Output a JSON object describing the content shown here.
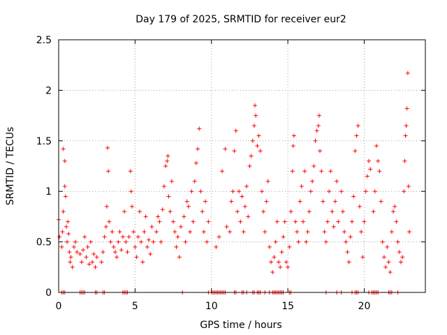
{
  "chart_data": {
    "type": "scatter",
    "title": "Day 179 of 2025, SRMTID for receiver eur2",
    "xlabel": "GPS time / hours",
    "ylabel": "SRMTID / TECUs",
    "xlim": [
      0,
      24
    ],
    "ylim": [
      0,
      2.5
    ],
    "xticks": [
      0,
      5,
      10,
      15,
      20
    ],
    "xtick_labels": [
      "0",
      "5",
      "10",
      "15",
      "20"
    ],
    "yticks": [
      0,
      0.5,
      1,
      1.5,
      2,
      2.5
    ],
    "ytick_labels": [
      "0",
      "0.5",
      "1",
      "1.5",
      "2",
      "2.5"
    ],
    "grid": true,
    "marker": "+",
    "color": "#ff0000",
    "points": [
      [
        0.0,
        0.72
      ],
      [
        0.05,
        0.55
      ],
      [
        0.2,
        0.45
      ],
      [
        0.25,
        0.6
      ],
      [
        0.3,
        0.8
      ],
      [
        0.3,
        1.42
      ],
      [
        0.4,
        1.3
      ],
      [
        0.4,
        1.05
      ],
      [
        0.45,
        0.95
      ],
      [
        0.5,
        0.65
      ],
      [
        0.55,
        0.5
      ],
      [
        0.6,
        0.7
      ],
      [
        0.65,
        0.58
      ],
      [
        0.7,
        0.4
      ],
      [
        0.75,
        0.3
      ],
      [
        0.8,
        0.35
      ],
      [
        0.9,
        0.25
      ],
      [
        1.0,
        0.45
      ],
      [
        1.1,
        0.5
      ],
      [
        1.2,
        0.4
      ],
      [
        1.4,
        0.38
      ],
      [
        1.5,
        0.3
      ],
      [
        1.6,
        0.42
      ],
      [
        1.7,
        0.55
      ],
      [
        1.8,
        0.35
      ],
      [
        1.9,
        0.45
      ],
      [
        2.0,
        0.28
      ],
      [
        2.1,
        0.5
      ],
      [
        2.2,
        0.3
      ],
      [
        2.3,
        0.38
      ],
      [
        2.4,
        0.25
      ],
      [
        2.5,
        0.35
      ],
      [
        2.8,
        0.3
      ],
      [
        2.9,
        0.4
      ],
      [
        3.0,
        0.55
      ],
      [
        3.1,
        0.65
      ],
      [
        3.15,
        0.85
      ],
      [
        3.2,
        1.43
      ],
      [
        3.25,
        1.2
      ],
      [
        3.3,
        0.7
      ],
      [
        3.4,
        0.5
      ],
      [
        3.5,
        0.6
      ],
      [
        3.6,
        0.45
      ],
      [
        3.7,
        0.4
      ],
      [
        3.8,
        0.35
      ],
      [
        3.9,
        0.5
      ],
      [
        4.0,
        0.6
      ],
      [
        4.1,
        0.42
      ],
      [
        4.2,
        0.55
      ],
      [
        4.3,
        0.8
      ],
      [
        4.4,
        0.5
      ],
      [
        4.5,
        0.4
      ],
      [
        4.6,
        0.55
      ],
      [
        4.7,
        1.2
      ],
      [
        4.75,
        1.0
      ],
      [
        4.8,
        0.85
      ],
      [
        4.9,
        0.6
      ],
      [
        5.0,
        0.45
      ],
      [
        5.1,
        0.35
      ],
      [
        5.2,
        0.55
      ],
      [
        5.3,
        0.8
      ],
      [
        5.4,
        0.5
      ],
      [
        5.5,
        0.3
      ],
      [
        5.6,
        0.6
      ],
      [
        5.7,
        0.75
      ],
      [
        5.8,
        0.45
      ],
      [
        5.9,
        0.52
      ],
      [
        6.0,
        0.38
      ],
      [
        6.1,
        0.65
      ],
      [
        6.2,
        0.5
      ],
      [
        6.4,
        0.6
      ],
      [
        6.5,
        0.75
      ],
      [
        6.6,
        0.7
      ],
      [
        6.7,
        0.5
      ],
      [
        6.8,
        0.82
      ],
      [
        6.9,
        1.05
      ],
      [
        7.0,
        1.25
      ],
      [
        7.1,
        1.3
      ],
      [
        7.15,
        1.35
      ],
      [
        7.2,
        0.95
      ],
      [
        7.3,
        0.8
      ],
      [
        7.4,
        1.1
      ],
      [
        7.5,
        0.7
      ],
      [
        7.6,
        0.6
      ],
      [
        7.7,
        0.45
      ],
      [
        7.8,
        0.55
      ],
      [
        7.9,
        0.35
      ],
      [
        8.0,
        0.65
      ],
      [
        8.2,
        0.75
      ],
      [
        8.3,
        0.5
      ],
      [
        8.4,
        0.9
      ],
      [
        8.5,
        0.85
      ],
      [
        8.6,
        0.6
      ],
      [
        8.7,
        1.0
      ],
      [
        8.8,
        0.7
      ],
      [
        8.9,
        1.1
      ],
      [
        9.0,
        1.28
      ],
      [
        9.1,
        1.42
      ],
      [
        9.2,
        1.62
      ],
      [
        9.3,
        1.0
      ],
      [
        9.4,
        0.8
      ],
      [
        9.5,
        0.6
      ],
      [
        9.6,
        0.9
      ],
      [
        9.7,
        0.5
      ],
      [
        9.8,
        0.7
      ],
      [
        10.3,
        0.45
      ],
      [
        10.5,
        0.55
      ],
      [
        10.7,
        1.2
      ],
      [
        10.9,
        1.42
      ],
      [
        11.0,
        0.65
      ],
      [
        11.2,
        0.6
      ],
      [
        11.3,
        0.9
      ],
      [
        11.4,
        1.0
      ],
      [
        11.5,
        1.4
      ],
      [
        11.6,
        1.6
      ],
      [
        11.7,
        0.8
      ],
      [
        11.8,
        1.0
      ],
      [
        11.9,
        0.7
      ],
      [
        12.0,
        0.95
      ],
      [
        12.1,
        0.6
      ],
      [
        12.2,
        0.85
      ],
      [
        12.3,
        1.05
      ],
      [
        12.4,
        0.75
      ],
      [
        12.5,
        1.25
      ],
      [
        12.6,
        1.35
      ],
      [
        12.7,
        1.5
      ],
      [
        12.8,
        1.65
      ],
      [
        12.85,
        1.85
      ],
      [
        12.9,
        1.75
      ],
      [
        13.0,
        1.45
      ],
      [
        13.1,
        1.55
      ],
      [
        13.2,
        1.4
      ],
      [
        13.3,
        1.0
      ],
      [
        13.4,
        0.8
      ],
      [
        13.5,
        0.6
      ],
      [
        13.6,
        0.9
      ],
      [
        13.7,
        1.1
      ],
      [
        13.8,
        0.45
      ],
      [
        13.9,
        0.3
      ],
      [
        14.0,
        0.2
      ],
      [
        14.1,
        0.35
      ],
      [
        14.2,
        0.5
      ],
      [
        14.3,
        0.7
      ],
      [
        14.4,
        0.3
      ],
      [
        14.5,
        0.25
      ],
      [
        14.6,
        0.4
      ],
      [
        14.7,
        0.55
      ],
      [
        14.8,
        0.7
      ],
      [
        14.9,
        0.3
      ],
      [
        15.0,
        0.25
      ],
      [
        15.1,
        0.45
      ],
      [
        15.2,
        0.8
      ],
      [
        15.3,
        1.2
      ],
      [
        15.35,
        1.45
      ],
      [
        15.4,
        1.55
      ],
      [
        15.5,
        0.7
      ],
      [
        15.6,
        0.6
      ],
      [
        15.7,
        0.5
      ],
      [
        15.8,
        0.9
      ],
      [
        15.9,
        1.05
      ],
      [
        16.0,
        0.7
      ],
      [
        16.1,
        1.2
      ],
      [
        16.2,
        0.5
      ],
      [
        16.3,
        0.6
      ],
      [
        16.4,
        0.8
      ],
      [
        16.5,
        1.0
      ],
      [
        16.6,
        1.1
      ],
      [
        16.7,
        1.25
      ],
      [
        16.8,
        1.5
      ],
      [
        16.9,
        1.6
      ],
      [
        17.0,
        1.65
      ],
      [
        17.05,
        1.75
      ],
      [
        17.1,
        1.4
      ],
      [
        17.2,
        1.2
      ],
      [
        17.3,
        0.9
      ],
      [
        17.4,
        0.6
      ],
      [
        17.5,
        0.5
      ],
      [
        17.6,
        0.7
      ],
      [
        17.7,
        1.0
      ],
      [
        17.8,
        1.2
      ],
      [
        17.9,
        0.8
      ],
      [
        18.0,
        0.65
      ],
      [
        18.1,
        0.9
      ],
      [
        18.2,
        1.1
      ],
      [
        18.3,
        0.7
      ],
      [
        18.5,
        1.0
      ],
      [
        18.6,
        0.8
      ],
      [
        18.7,
        0.6
      ],
      [
        18.8,
        0.5
      ],
      [
        18.9,
        0.4
      ],
      [
        19.0,
        0.3
      ],
      [
        19.1,
        0.55
      ],
      [
        19.2,
        0.7
      ],
      [
        19.3,
        0.95
      ],
      [
        19.4,
        1.4
      ],
      [
        19.5,
        1.55
      ],
      [
        19.6,
        1.65
      ],
      [
        19.7,
        0.85
      ],
      [
        19.8,
        0.6
      ],
      [
        19.9,
        0.35
      ],
      [
        20.0,
        0.7
      ],
      [
        20.1,
        1.0
      ],
      [
        20.2,
        1.15
      ],
      [
        20.3,
        1.3
      ],
      [
        20.4,
        1.22
      ],
      [
        20.6,
        0.8
      ],
      [
        20.7,
        1.0
      ],
      [
        20.8,
        1.45
      ],
      [
        20.9,
        1.3
      ],
      [
        21.0,
        1.2
      ],
      [
        21.1,
        0.9
      ],
      [
        21.2,
        0.5
      ],
      [
        21.3,
        0.35
      ],
      [
        21.4,
        0.25
      ],
      [
        21.5,
        0.45
      ],
      [
        21.6,
        0.3
      ],
      [
        21.7,
        0.2
      ],
      [
        21.8,
        0.6
      ],
      [
        21.9,
        0.8
      ],
      [
        22.0,
        0.85
      ],
      [
        22.1,
        0.7
      ],
      [
        22.2,
        0.5
      ],
      [
        22.3,
        0.4
      ],
      [
        22.4,
        0.3
      ],
      [
        22.5,
        0.35
      ],
      [
        22.6,
        1.0
      ],
      [
        22.65,
        1.3
      ],
      [
        22.7,
        1.55
      ],
      [
        22.75,
        1.65
      ],
      [
        22.8,
        1.82
      ],
      [
        22.85,
        2.17
      ],
      [
        22.9,
        1.05
      ],
      [
        22.95,
        0.6
      ]
    ],
    "zero_points_x": [
      0.2,
      0.3,
      0.4,
      1.4,
      1.5,
      1.6,
      1.7,
      2.4,
      2.5,
      2.9,
      3.0,
      4.2,
      4.3,
      4.4,
      4.5,
      8.1,
      9.8,
      10.0,
      10.1,
      10.2,
      10.3,
      10.4,
      10.5,
      10.6,
      10.7,
      10.8,
      10.9,
      11.5,
      11.6,
      12.0,
      12.1,
      12.3,
      12.7,
      12.8,
      13.0,
      13.1,
      13.2,
      13.5,
      13.8,
      14.0,
      14.1,
      14.2,
      14.3,
      14.4,
      14.5,
      14.6,
      14.7,
      15.1,
      15.2,
      17.5,
      18.2,
      18.5,
      19.2,
      19.4,
      19.5,
      19.6,
      20.3,
      20.5,
      20.6,
      20.7,
      20.8,
      20.9,
      21.6,
      21.7,
      21.8,
      22.2
    ]
  }
}
